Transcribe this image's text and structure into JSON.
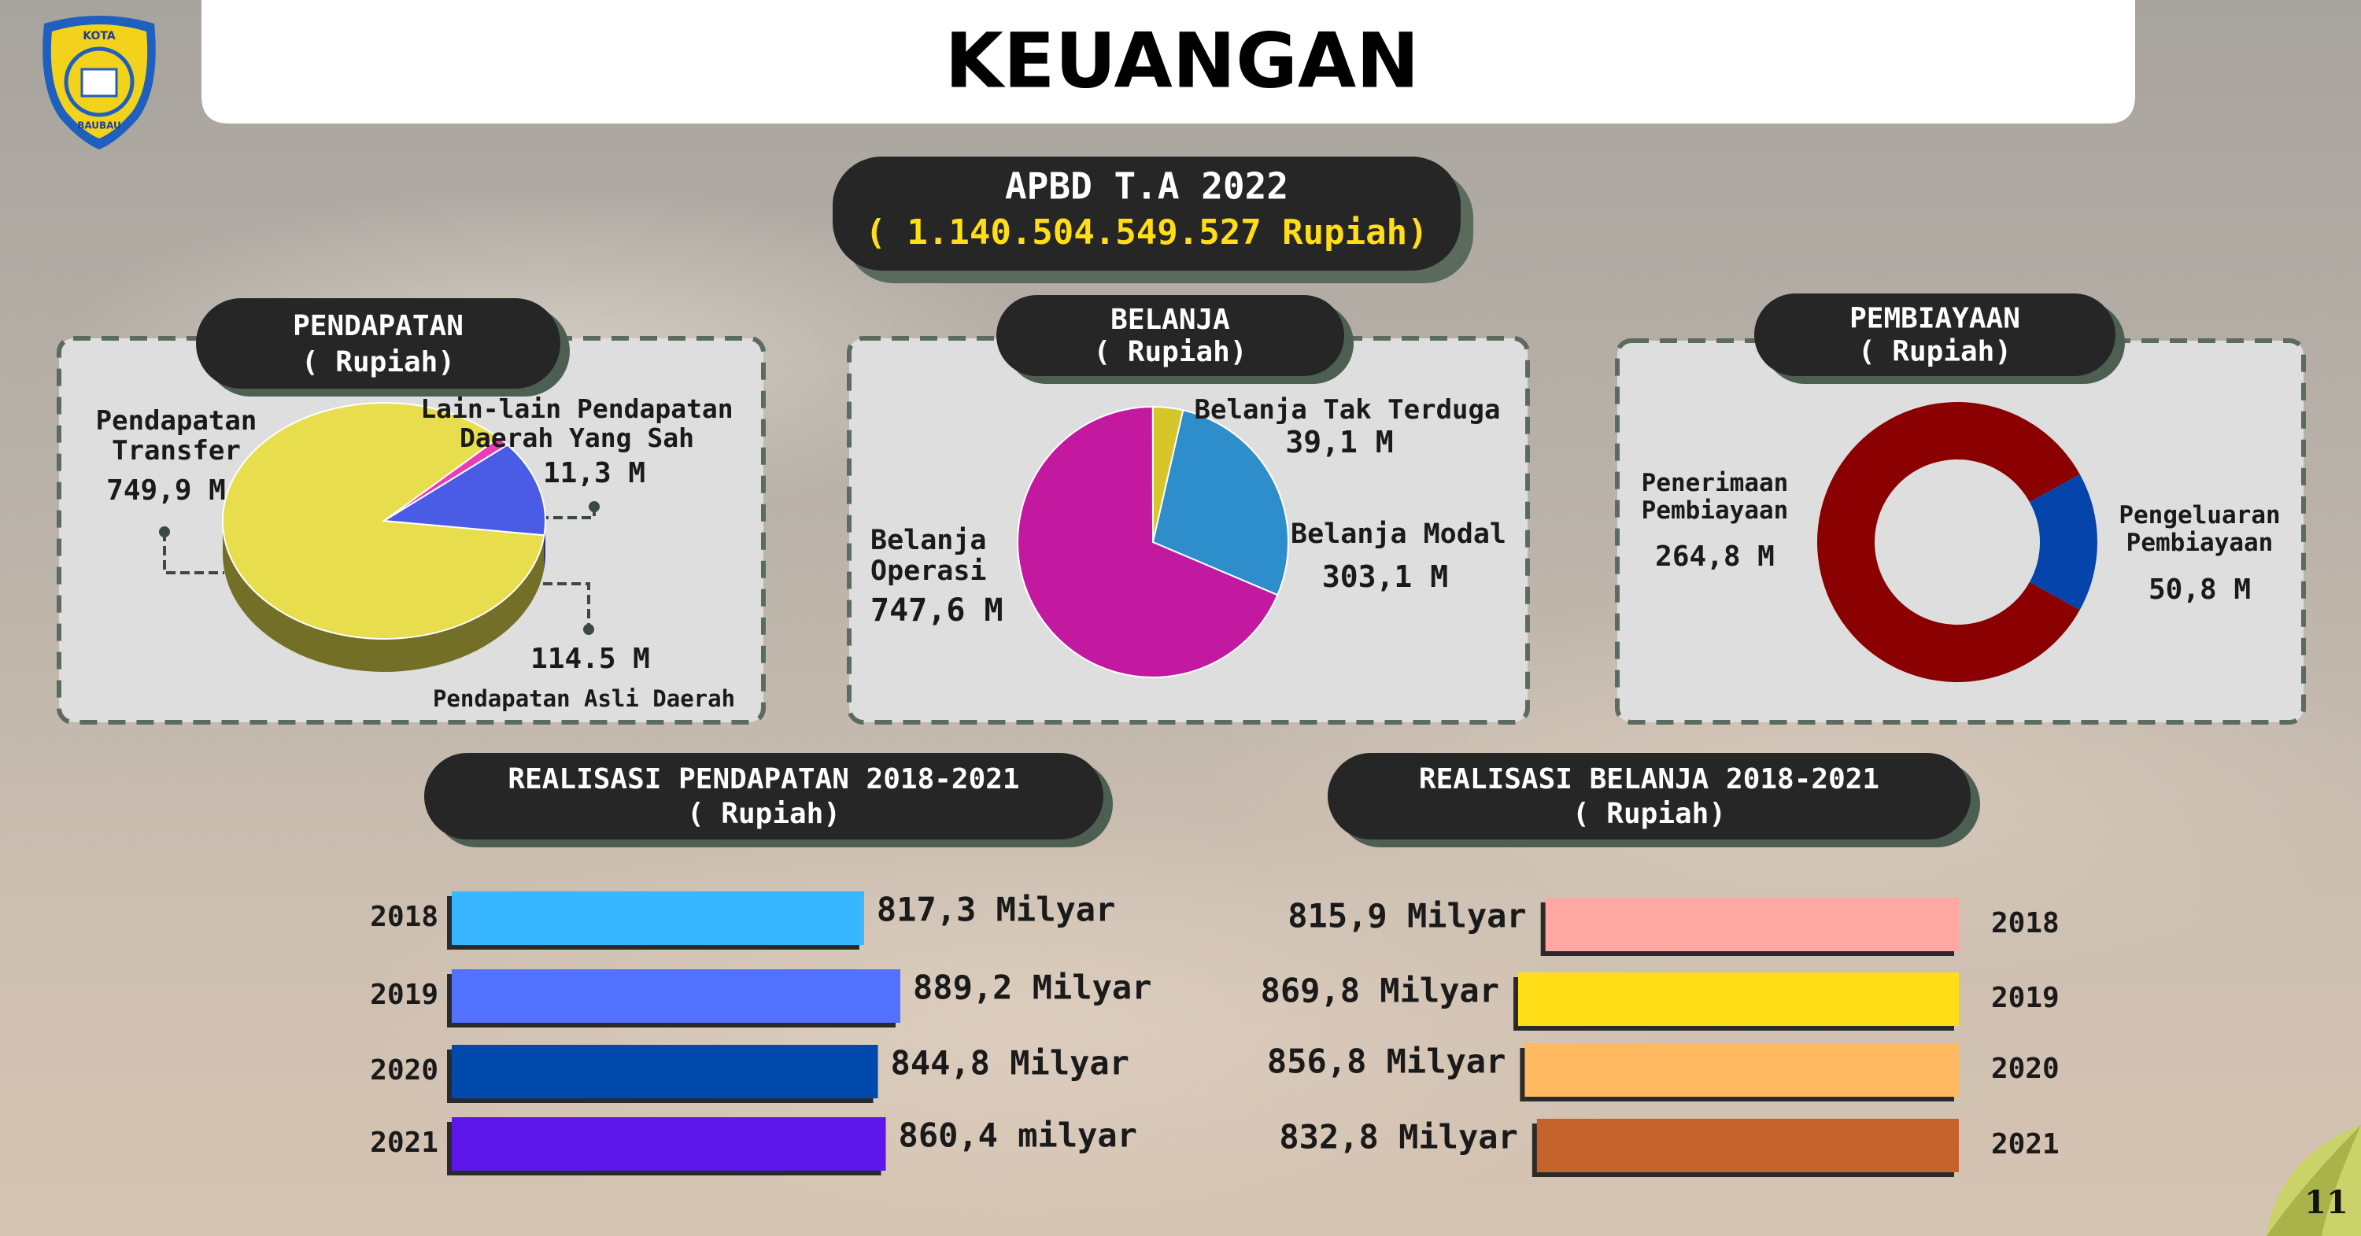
{
  "header": {
    "title": "KEUANGAN"
  },
  "logo": {
    "top": "KOTA",
    "bottom": "BAUBAU"
  },
  "summary": {
    "title": "APBD T.A 2022",
    "amount": "( 1.140.504.549.527 Rupiah)"
  },
  "chart_data": [
    {
      "type": "pie",
      "title": "PENDAPATAN",
      "subtitle": "( Rupiah)",
      "categories": [
        "Pendapatan Transfer",
        "Lain-lain Pendapatan Daerah Yang Sah",
        "Pendapatan Asli Daerah"
      ],
      "values": [
        749.9,
        11.3,
        114.5
      ],
      "value_labels": [
        "749,9 M",
        "11,3 M",
        "114.5 M"
      ],
      "colors": [
        "#e8dd4c",
        "#e83db5",
        "#4a5be6"
      ],
      "three_d": true
    },
    {
      "type": "pie",
      "title": "BELANJA",
      "subtitle": "( Rupiah)",
      "categories": [
        "Belanja Operasi",
        "Belanja Tak Terduga",
        "Belanja Modal"
      ],
      "values": [
        747.6,
        39.1,
        303.1
      ],
      "value_labels": [
        "747,6 M",
        "39,1 M",
        "303,1 M"
      ],
      "colors": [
        "#c219a0",
        "#d6c62a",
        "#2d8ecb"
      ]
    },
    {
      "type": "donut",
      "title": "PEMBIAYAAN",
      "subtitle": "( Rupiah)",
      "categories": [
        "Penerimaan Pembiayaan",
        "Pengeluaran Pembiayaan"
      ],
      "values": [
        264.8,
        50.8
      ],
      "value_labels": [
        "264,8 M",
        "50,8 M"
      ],
      "colors": [
        "#8b0000",
        "#0444ab"
      ]
    },
    {
      "type": "bar",
      "orientation": "horizontal",
      "align": "left",
      "title": "REALISASI PENDAPATAN 2018-2021",
      "subtitle": "( Rupiah)",
      "categories": [
        "2018",
        "2019",
        "2020",
        "2021"
      ],
      "values": [
        817.3,
        889.2,
        844.8,
        860.4
      ],
      "value_labels": [
        "817,3 Milyar",
        "889,2 Milyar",
        "844,8 Milyar",
        "860,4 milyar"
      ],
      "colors": [
        "#38b6ff",
        "#5271ff",
        "#004aad",
        "#5e17eb"
      ]
    },
    {
      "type": "bar",
      "orientation": "horizontal",
      "align": "right",
      "title": "REALISASI BELANJA  2018-2021",
      "subtitle": "( Rupiah)",
      "categories": [
        "2018",
        "2019",
        "2020",
        "2021"
      ],
      "values": [
        815.9,
        869.8,
        856.8,
        832.8
      ],
      "value_labels": [
        "815,9 Milyar",
        "869,8 Milyar",
        "856,8 Milyar",
        "832,8 Milyar"
      ],
      "colors": [
        "#ffa8a2",
        "#ffde17",
        "#ffb961",
        "#c6622b"
      ]
    }
  ],
  "page_number": "11"
}
